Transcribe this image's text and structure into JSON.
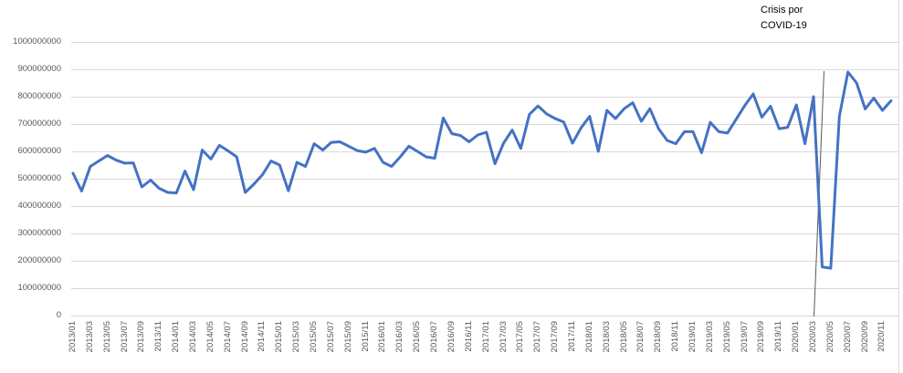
{
  "chart_data": {
    "type": "line",
    "title": "",
    "xlabel": "",
    "ylabel": "",
    "ylim": [
      0,
      1000000000
    ],
    "grid": true,
    "legend": false,
    "line_color": "#4472C4",
    "gridline_color": "#d9d9d9",
    "tick_label_color": "#595959",
    "y_ticks": [
      1000000000,
      900000000,
      800000000,
      700000000,
      600000000,
      500000000,
      400000000,
      300000000,
      200000000,
      100000000,
      0
    ],
    "y_tick_labels": [
      "1000000000",
      "900000000",
      "800000000",
      "700000000",
      "600000000",
      "500000000",
      "400000000",
      "300000000",
      "200000000",
      "100000000",
      "0"
    ],
    "x_tick_labels": [
      "2013/01",
      "2013/03",
      "2013/05",
      "2013/07",
      "2013/09",
      "2013/11",
      "2014/01",
      "2014/03",
      "2014/05",
      "2014/07",
      "2014/09",
      "2014/11",
      "2015/01",
      "2015/03",
      "2015/05",
      "2015/07",
      "2015/09",
      "2015/11",
      "2016/01",
      "2016/03",
      "2016/05",
      "2016/07",
      "2016/09",
      "2016/11",
      "2017/01",
      "2017/03",
      "2017/05",
      "2017/07",
      "2017/09",
      "2017/11",
      "2018/01",
      "2018/03",
      "2018/05",
      "2018/07",
      "2018/09",
      "2018/11",
      "2019/01",
      "2019/03",
      "2019/05",
      "2019/07",
      "2019/09",
      "2019/11",
      "2020/01",
      "2020/03",
      "2020/05",
      "2020/07",
      "2020/09",
      "2020/11"
    ],
    "x": [
      "2013/01",
      "2013/02",
      "2013/03",
      "2013/04",
      "2013/05",
      "2013/06",
      "2013/07",
      "2013/08",
      "2013/09",
      "2013/10",
      "2013/11",
      "2013/12",
      "2014/01",
      "2014/02",
      "2014/03",
      "2014/04",
      "2014/05",
      "2014/06",
      "2014/07",
      "2014/08",
      "2014/09",
      "2014/10",
      "2014/11",
      "2014/12",
      "2015/01",
      "2015/02",
      "2015/03",
      "2015/04",
      "2015/05",
      "2015/06",
      "2015/07",
      "2015/08",
      "2015/09",
      "2015/10",
      "2015/11",
      "2015/12",
      "2016/01",
      "2016/02",
      "2016/03",
      "2016/04",
      "2016/05",
      "2016/06",
      "2016/07",
      "2016/08",
      "2016/09",
      "2016/10",
      "2016/11",
      "2016/12",
      "2017/01",
      "2017/02",
      "2017/03",
      "2017/04",
      "2017/05",
      "2017/06",
      "2017/07",
      "2017/08",
      "2017/09",
      "2017/10",
      "2017/11",
      "2017/12",
      "2018/01",
      "2018/02",
      "2018/03",
      "2018/04",
      "2018/05",
      "2018/06",
      "2018/07",
      "2018/08",
      "2018/09",
      "2018/10",
      "2018/11",
      "2018/12",
      "2019/01",
      "2019/02",
      "2019/03",
      "2019/04",
      "2019/05",
      "2019/06",
      "2019/07",
      "2019/08",
      "2019/09",
      "2019/10",
      "2019/11",
      "2019/12",
      "2020/01",
      "2020/02",
      "2020/03",
      "2020/04",
      "2020/05",
      "2020/06",
      "2020/07",
      "2020/08",
      "2020/09",
      "2020/10",
      "2020/11",
      "2020/12"
    ],
    "series": [
      {
        "name": "",
        "values": [
          520000000,
          455000000,
          545000000,
          565000000,
          585000000,
          568000000,
          557000000,
          558000000,
          470000000,
          495000000,
          465000000,
          450000000,
          448000000,
          528000000,
          460000000,
          605000000,
          572000000,
          622000000,
          602000000,
          580000000,
          450000000,
          480000000,
          515000000,
          565000000,
          550000000,
          456000000,
          560000000,
          545000000,
          628000000,
          605000000,
          633000000,
          635000000,
          619000000,
          603000000,
          597000000,
          611000000,
          560000000,
          545000000,
          580000000,
          619000000,
          600000000,
          580000000,
          575000000,
          722000000,
          665000000,
          658000000,
          635000000,
          660000000,
          670000000,
          555000000,
          630000000,
          678000000,
          611000000,
          735000000,
          766000000,
          737000000,
          720000000,
          707000000,
          630000000,
          686000000,
          728000000,
          600000000,
          750000000,
          720000000,
          756000000,
          778000000,
          710000000,
          756000000,
          683000000,
          640000000,
          628000000,
          672000000,
          672000000,
          595000000,
          706000000,
          672000000,
          667000000,
          717000000,
          767000000,
          810000000,
          725000000,
          765000000,
          683000000,
          688000000,
          770000000,
          628000000,
          800000000,
          178000000,
          173000000,
          728000000,
          890000000,
          850000000,
          755000000,
          795000000,
          750000000,
          785000000
        ]
      }
    ],
    "annotation": {
      "lines": [
        "Crisis por",
        "COVID-19"
      ],
      "target_month": "2020/03",
      "leader_line_color": "#595959"
    }
  }
}
